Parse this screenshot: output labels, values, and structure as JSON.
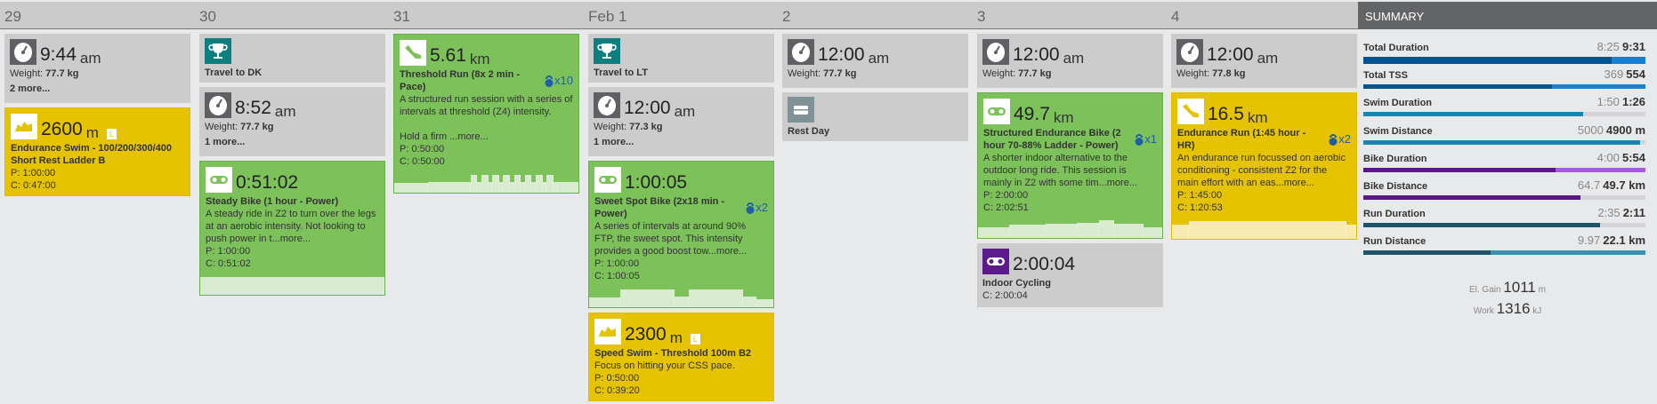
{
  "summary": {
    "title": "SUMMARY",
    "rows": [
      {
        "label": "Total Duration",
        "planned": "8:25",
        "actual": "9:31",
        "fill": 0.88,
        "over": 1.0,
        "color": "#00548f",
        "over_color": "#1a7fd0"
      },
      {
        "label": "Total TSS",
        "planned": "369",
        "actual": "554",
        "fill": 0.67,
        "over": 1.0,
        "color": "#00548f",
        "over_color": "#1a7fd0"
      },
      {
        "label": "Swim Duration",
        "planned": "1:50",
        "actual": "1:26",
        "fill": 0.78,
        "color": "#1a85b0"
      },
      {
        "label": "Swim Distance",
        "planned": "5000",
        "actual": "4900 m",
        "fill": 0.98,
        "color": "#1a85b0"
      },
      {
        "label": "Bike Duration",
        "planned": "4:00",
        "actual": "5:54",
        "fill": 0.68,
        "over": 1.0,
        "color": "#5a1785",
        "over_color": "#a45be0"
      },
      {
        "label": "Bike Distance",
        "planned": "64.7",
        "actual": "49.7 km",
        "fill": 0.77,
        "color": "#5a1785"
      },
      {
        "label": "Run Duration",
        "planned": "2:35",
        "actual": "2:11",
        "fill": 0.84,
        "color": "#1f5468"
      },
      {
        "label": "Run Distance",
        "planned": "9.97",
        "actual": "22.1 km",
        "fill": 0.45,
        "over": 1.0,
        "color": "#1f5468",
        "over_color": "#3a90b0"
      }
    ],
    "el_gain": {
      "label": "El. Gain",
      "value": "1011",
      "unit": "m"
    },
    "work": {
      "label": "Work",
      "value": "1316",
      "unit": "kJ"
    }
  },
  "days": [
    {
      "label": "29",
      "cards": [
        {
          "kind": "metric",
          "icon": "scale-icon",
          "value": "9:44",
          "unit": "am",
          "line": "Weight:",
          "line_val": "77.7 kg",
          "more": "2 more..."
        },
        {
          "kind": "workout",
          "color": "yellow",
          "icon": "swim-icon",
          "value": "2600",
          "unit": "m",
          "badge": "L",
          "title": "Endurance Swim - 100/200/300/400 Short Rest Ladder B",
          "planned": "P: 1:00:00",
          "completed": "C: 0:47:00"
        }
      ]
    },
    {
      "label": "30",
      "cards": [
        {
          "kind": "event",
          "icon": "trophy-icon",
          "title": "Travel to DK"
        },
        {
          "kind": "metric",
          "icon": "scale-icon",
          "value": "8:52",
          "unit": "am",
          "line": "Weight:",
          "line_val": "77.7 kg",
          "more": "1 more..."
        },
        {
          "kind": "workout",
          "color": "green",
          "icon": "bike-icon",
          "value": "0:51:02",
          "title": "Steady Bike (1 hour - Power)",
          "desc": "A steady ride in Z2 to turn over the legs at an aerobic intensity. Not looking to push power in t...more...",
          "planned": "P: 1:00:00",
          "completed": "C: 0:51:02",
          "profile": [
            [
              1,
              1
            ]
          ]
        }
      ]
    },
    {
      "label": "31",
      "cards": [
        {
          "kind": "workout",
          "color": "green",
          "icon": "run-icon",
          "value": "5.61",
          "unit": "km",
          "title": "Threshold Run (8x 2 min - Pace)",
          "reps": "x10",
          "desc": "A structured run session with a series of intervals at threshold (Z4) intensity.\n\nHold a firm ...more...",
          "planned": "P: 0:50:00",
          "completed": "C: 0:50:00",
          "profile": [
            [
              0.2,
              0.55
            ],
            [
              0.25,
              0.6
            ],
            [
              0.035,
              1
            ],
            [
              0.02,
              0.6
            ],
            [
              0.035,
              1
            ],
            [
              0.02,
              0.6
            ],
            [
              0.035,
              1
            ],
            [
              0.02,
              0.6
            ],
            [
              0.035,
              1
            ],
            [
              0.02,
              0.6
            ],
            [
              0.035,
              1
            ],
            [
              0.02,
              0.6
            ],
            [
              0.035,
              1
            ],
            [
              0.02,
              0.6
            ],
            [
              0.035,
              1
            ],
            [
              0.02,
              0.6
            ],
            [
              0.035,
              1
            ],
            [
              0.02,
              0.6
            ],
            [
              0.12,
              0.6
            ]
          ]
        }
      ]
    },
    {
      "label": "Feb 1",
      "cards": [
        {
          "kind": "event",
          "icon": "trophy-icon",
          "title": "Travel to LT"
        },
        {
          "kind": "metric",
          "icon": "scale-icon",
          "value": "12:00",
          "unit": "am",
          "line": "Weight:",
          "line_val": "77.3 kg",
          "more": "1 more..."
        },
        {
          "kind": "workout",
          "color": "green",
          "icon": "bike-icon",
          "value": "1:00:05",
          "title": "Sweet Spot Bike (2x18 min - Power)",
          "reps": "x2",
          "desc": "A series of intervals at around 90% FTP, the sweet spot. This intensity provides a good boost tow...more...",
          "planned": "P: 1:00:00",
          "completed": "C: 1:00:05",
          "profile": [
            [
              0.17,
              0.55
            ],
            [
              0.3,
              1
            ],
            [
              0.07,
              0.6
            ],
            [
              0.3,
              1
            ],
            [
              0.07,
              0.6
            ],
            [
              0.09,
              0.45
            ]
          ]
        },
        {
          "kind": "workout",
          "color": "yellow",
          "icon": "swim-icon",
          "value": "2300",
          "unit": "m",
          "badge": "L",
          "title": "Speed Swim - Threshold 100m B2",
          "desc": "Focus on hitting your CSS pace.",
          "planned": "P: 0:50:00",
          "completed": "C: 0:39:20"
        }
      ]
    },
    {
      "label": "2",
      "cards": [
        {
          "kind": "metric",
          "icon": "scale-icon",
          "value": "12:00",
          "unit": "am",
          "line": "Weight:",
          "line_val": "77.7 kg"
        },
        {
          "kind": "event",
          "icon": "rest-icon",
          "title": "Rest Day"
        }
      ]
    },
    {
      "label": "3",
      "cards": [
        {
          "kind": "metric",
          "icon": "scale-icon",
          "value": "12:00",
          "unit": "am",
          "line": "Weight:",
          "line_val": "77.7 kg"
        },
        {
          "kind": "workout",
          "color": "green",
          "icon": "bike-icon",
          "value": "49.7",
          "unit": "km",
          "title": "Structured Endurance Bike (2 hour 70-88% Ladder - Power)",
          "reps": "x1",
          "desc": "A shorter indoor alternative to the outdoor long ride. This session is mainly in Z2 with some tim...more...",
          "planned": "P: 2:00:00",
          "completed": "C: 2:02:51",
          "profile": [
            [
              0.17,
              0.6
            ],
            [
              0.2,
              0.75
            ],
            [
              0.17,
              0.78
            ],
            [
              0.12,
              0.85
            ],
            [
              0.08,
              1
            ],
            [
              0.16,
              0.8
            ],
            [
              0.1,
              0.6
            ]
          ]
        },
        {
          "kind": "workout",
          "color": "gray2",
          "icon": "indoor-bike-icon",
          "value": "2:00:04",
          "title": "Indoor Cycling",
          "completed": "C: 2:00:04"
        }
      ]
    },
    {
      "label": "4",
      "cards": [
        {
          "kind": "metric",
          "icon": "scale-icon",
          "value": "12:00",
          "unit": "am",
          "line": "Weight:",
          "line_val": "77.8 kg"
        },
        {
          "kind": "workout",
          "color": "yellow",
          "icon": "run-icon",
          "value": "16.5",
          "unit": "km",
          "title": "Endurance Run (1:45 hour - HR)",
          "reps": "x2",
          "desc": "An endurance run focussed on aerobic conditioning - consistent Z2 for the main effort with an eas...more...",
          "planned": "P: 1:45:00",
          "completed": "C: 1:20:53",
          "profile": [
            [
              0.09,
              0.8
            ],
            [
              0.86,
              1
            ],
            [
              0.05,
              0.8
            ]
          ]
        }
      ]
    }
  ]
}
